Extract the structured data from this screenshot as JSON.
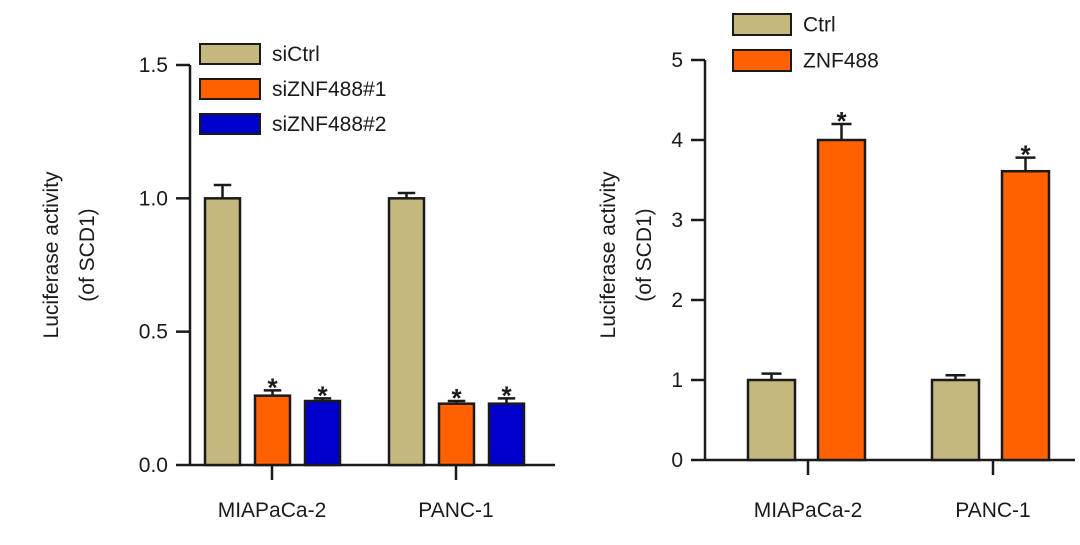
{
  "chart_data": [
    {
      "type": "bar",
      "title": "",
      "xlabel": "",
      "ylabel": [
        "Luciferase activity",
        "(of SCD1)"
      ],
      "ylim": [
        0,
        1.5
      ],
      "yticks": [
        "0.0",
        "0.5",
        "1.0",
        "1.5"
      ],
      "grid": false,
      "legend_position": "top",
      "categories": [
        "MIAPaCa-2",
        "PANC-1"
      ],
      "series": [
        {
          "name": "siCtrl",
          "color": "#c4b87e",
          "values": [
            1.0,
            1.0
          ],
          "errors": [
            0.05,
            0.02
          ],
          "marks": [
            "",
            ""
          ]
        },
        {
          "name": "siZNF488#1",
          "color": "#ff6000",
          "values": [
            0.26,
            0.23
          ],
          "errors": [
            0.02,
            0.01
          ],
          "marks": [
            "*",
            "*"
          ]
        },
        {
          "name": "siZNF488#2",
          "color": "#0000cc",
          "values": [
            0.24,
            0.23
          ],
          "errors": [
            0.01,
            0.02
          ],
          "marks": [
            "*",
            "*"
          ]
        }
      ]
    },
    {
      "type": "bar",
      "title": "",
      "xlabel": "",
      "ylabel": [
        "Luciferase activity",
        "(of SCD1)"
      ],
      "ylim": [
        0,
        5
      ],
      "yticks": [
        "0",
        "1",
        "2",
        "3",
        "4",
        "5"
      ],
      "grid": false,
      "legend_position": "top",
      "categories": [
        "MIAPaCa-2",
        "PANC-1"
      ],
      "series": [
        {
          "name": "Ctrl",
          "color": "#c4b87e",
          "values": [
            1.0,
            1.0
          ],
          "errors": [
            0.08,
            0.06
          ],
          "marks": [
            "",
            ""
          ]
        },
        {
          "name": "ZNF488",
          "color": "#ff6000",
          "values": [
            4.0,
            3.61
          ],
          "errors": [
            0.2,
            0.17
          ],
          "marks": [
            "*",
            "*"
          ]
        }
      ]
    }
  ]
}
